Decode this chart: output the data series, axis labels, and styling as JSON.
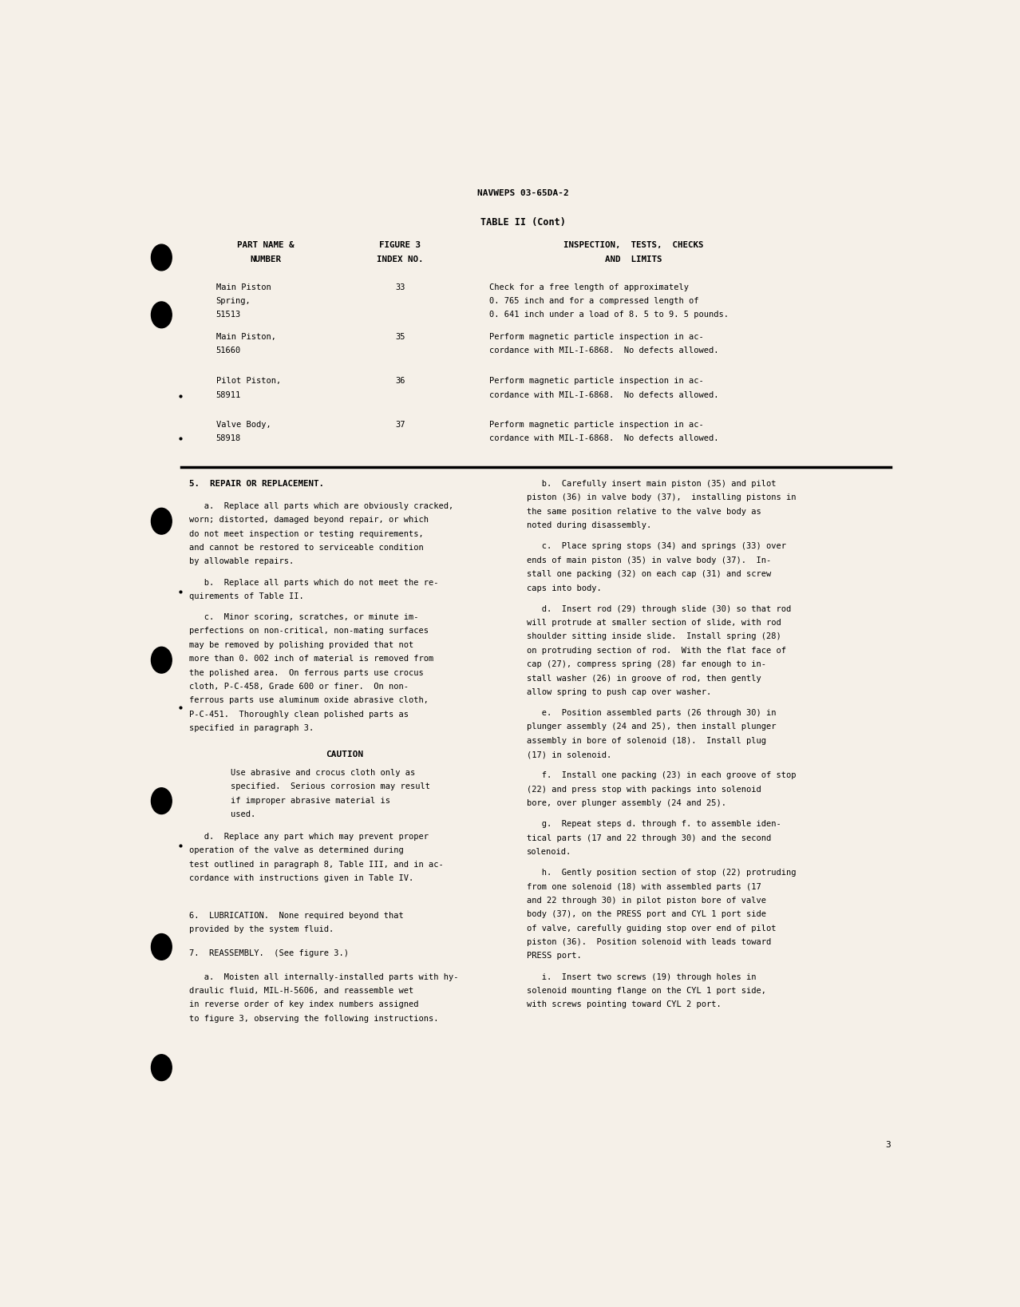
{
  "bg_color": "#f5f0e8",
  "header": "NAVWEPS 03-65DA-2",
  "table_title": "TABLE II (Cont)",
  "col_headers_1": "PART NAME &\nNUMBER",
  "col_headers_2": "FIGURE 3\nINDEX NO.",
  "col_headers_3": "INSPECTION,  TESTS,  CHECKS\nAND  LIMITS",
  "table_rows": [
    {
      "part": "Main Piston\nSpring,\n51513",
      "index": "33",
      "inspection": "Check for a free length of approximately\n0. 765 inch and for a compressed length of\n0. 641 inch under a load of 8. 5 to 9. 5 pounds."
    },
    {
      "part": "Main Piston,\n51660",
      "index": "35",
      "inspection": "Perform magnetic particle inspection in ac-\ncordance with MIL-I-6868.  No defects allowed."
    },
    {
      "part": "Pilot Piston,\n58911",
      "index": "36",
      "inspection": "Perform magnetic particle inspection in ac-\ncordance with MIL-I-6868.  No defects allowed."
    },
    {
      "part": "Valve Body,\n58918",
      "index": "37",
      "inspection": "Perform magnetic particle inspection in ac-\ncordance with MIL-I-6868.  No defects allowed."
    }
  ],
  "left_col_text": [
    {
      "style": "heading",
      "text": "5.  REPAIR OR REPLACEMENT."
    },
    {
      "style": "body",
      "text": "   a.  Replace all parts which are obviously cracked,\nworn; distorted, damaged beyond repair, or which\ndo not meet inspection or testing requirements,\nand cannot be restored to serviceable condition\nby allowable repairs."
    },
    {
      "style": "body",
      "text": "   b.  Replace all parts which do not meet the re-\nquirements of Table II."
    },
    {
      "style": "body",
      "text": "   c.  Minor scoring, scratches, or minute im-\nperfections on non-critical, non-mating surfaces\nmay be removed by polishing provided that not\nmore than 0. 002 inch of material is removed from\nthe polished area.  On ferrous parts use crocus\ncloth, P-C-458, Grade 600 or finer.  On non-\nferrous parts use aluminum oxide abrasive cloth,\nP-C-451.  Thoroughly clean polished parts as\nspecified in paragraph 3."
    },
    {
      "style": "caution_heading",
      "text": "CAUTION"
    },
    {
      "style": "caution_body",
      "text": "Use abrasive and crocus cloth only as\nspecified.  Serious corrosion may result\nif improper abrasive material is\nused."
    },
    {
      "style": "body",
      "text": "   d.  Replace any part which may prevent proper\noperation of the valve as determined during\ntest outlined in paragraph 8, Table III, and in ac-\ncordance with instructions given in Table IV."
    },
    {
      "style": "gap",
      "text": ""
    },
    {
      "style": "plain",
      "text": "6.  LUBRICATION.  None required beyond that\nprovided by the system fluid."
    },
    {
      "style": "gap_sm",
      "text": ""
    },
    {
      "style": "plain",
      "text": "7.  REASSEMBLY.  (See figure 3.)"
    },
    {
      "style": "gap_sm",
      "text": ""
    },
    {
      "style": "body",
      "text": "   a.  Moisten all internally-installed parts with hy-\ndraulic fluid, MIL-H-5606, and reassemble wet\nin reverse order of key index numbers assigned\nto figure 3, observing the following instructions."
    }
  ],
  "right_col_text": [
    {
      "style": "body",
      "text": "   b.  Carefully insert main piston (35) and pilot\npiston (36) in valve body (37),  installing pistons in\nthe same position relative to the valve body as\nnoted during disassembly."
    },
    {
      "style": "body",
      "text": "   c.  Place spring stops (34) and springs (33) over\nends of main piston (35) in valve body (37).  In-\nstall one packing (32) on each cap (31) and screw\ncaps into body."
    },
    {
      "style": "body",
      "text": "   d.  Insert rod (29) through slide (30) so that rod\nwill protrude at smaller section of slide, with rod\nshoulder sitting inside slide.  Install spring (28)\non protruding section of rod.  With the flat face of\ncap (27), compress spring (28) far enough to in-\nstall washer (26) in groove of rod, then gently\nallow spring to push cap over washer."
    },
    {
      "style": "body",
      "text": "   e.  Position assembled parts (26 through 30) in\nplunger assembly (24 and 25), then install plunger\nassembly in bore of solenoid (18).  Install plug\n(17) in solenoid."
    },
    {
      "style": "body",
      "text": "   f.  Install one packing (23) in each groove of stop\n(22) and press stop with packings into solenoid\nbore, over plunger assembly (24 and 25)."
    },
    {
      "style": "body",
      "text": "   g.  Repeat steps d. through f. to assemble iden-\ntical parts (17 and 22 through 30) and the second\nsolenoid."
    },
    {
      "style": "body",
      "text": "   h.  Gently position section of stop (22) protruding\nfrom one solenoid (18) with assembled parts (17\nand 22 through 30) in pilot piston bore of valve\nbody (37), on the PRESS port and CYL 1 port side\nof valve, carefully guiding stop over end of pilot\npiston (36).  Position solenoid with leads toward\nPRESS port."
    },
    {
      "style": "body",
      "text": "   i.  Insert two screws (19) through holes in\nsolenoid mounting flange on the CYL 1 port side,\nwith screws pointing toward CYL 2 port."
    }
  ],
  "page_number": "3"
}
